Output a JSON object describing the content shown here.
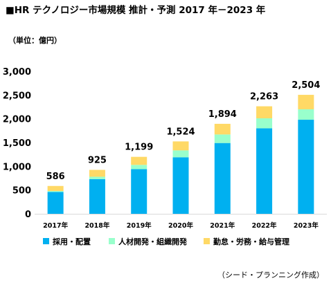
{
  "header": {
    "title": "■HR テクノロジー市場規模  推計・予測 2017 年－2023 年",
    "unit_label": "（単位：億円）"
  },
  "footer": {
    "source": "（シード・プランニング作成）"
  },
  "chart_data": {
    "type": "bar",
    "stacked": true,
    "title": "■HR テクノロジー市場規模  推計・予測 2017 年－2023 年",
    "ylabel": "（単位：億円）",
    "xlabel": "",
    "categories": [
      "2017年",
      "2018年",
      "2019年",
      "2020年",
      "2021年",
      "2022年",
      "2023年"
    ],
    "ylim": [
      0,
      3000
    ],
    "yticks": [
      0,
      500,
      1000,
      1500,
      2000,
      2500,
      3000
    ],
    "ytick_labels": [
      "0",
      "500",
      "1,000",
      "1,500",
      "2,000",
      "2,500",
      "3,000"
    ],
    "series": [
      {
        "name": "採用・配置",
        "color": "#00b0f0",
        "values": [
          460,
          730,
          940,
          1190,
          1490,
          1800,
          1980
        ]
      },
      {
        "name": "人材開発・組織開発",
        "color": "#99ffcc",
        "values": [
          20,
          50,
          90,
          145,
          180,
          210,
          220
        ]
      },
      {
        "name": "勤怠・労務・給与管理",
        "color": "#ffd966",
        "values": [
          106,
          145,
          169,
          189,
          224,
          253,
          304
        ]
      }
    ],
    "totals": [
      586,
      925,
      1199,
      1524,
      1894,
      2263,
      2504
    ],
    "total_labels": [
      "586",
      "925",
      "1,199",
      "1,524",
      "1,894",
      "2,263",
      "2,504"
    ],
    "legend": "bottom",
    "grid": false
  }
}
